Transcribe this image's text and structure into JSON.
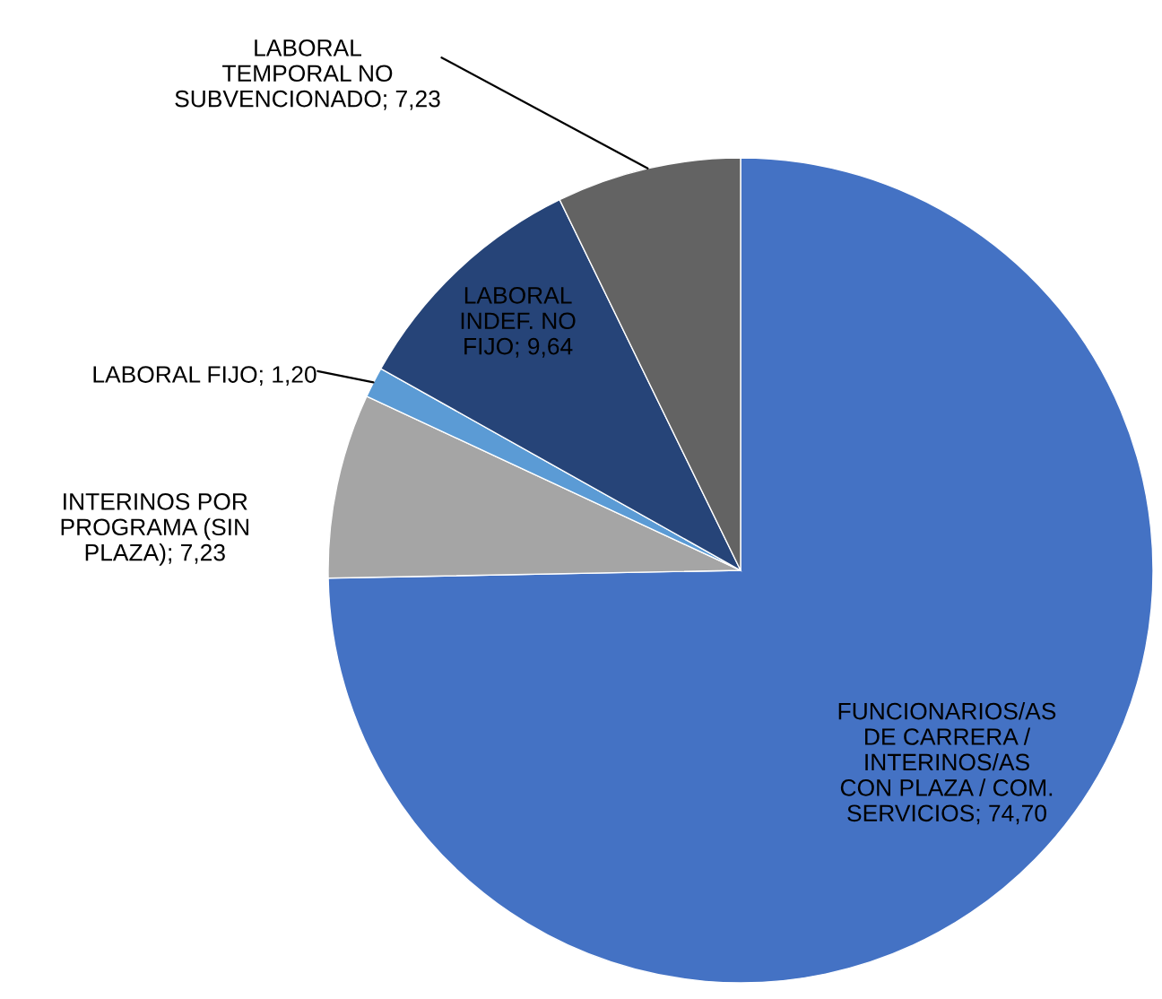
{
  "chart_data": {
    "type": "pie",
    "categories": [
      "FUNCIONARIOS/AS\nDE CARRERA /\nINTERINOS/AS\nCON PLAZA / COM.\nSERVICIOS",
      "INTERINOS POR\nPROGRAMA (SIN\nPLAZA)",
      "LABORAL FIJO",
      "LABORAL\nINDEF. NO\nFIJO",
      "LABORAL\nTEMPORAL NO\nSUBVENCIONADO"
    ],
    "values": [
      74.7,
      7.23,
      1.2,
      9.64,
      7.23
    ],
    "value_labels": [
      "74,70",
      "7,23",
      "1,20",
      "9,64",
      "7,23"
    ],
    "colors": [
      "#4472c4",
      "#a5a5a5",
      "#5b9bd5",
      "#264478",
      "#636363"
    ]
  }
}
